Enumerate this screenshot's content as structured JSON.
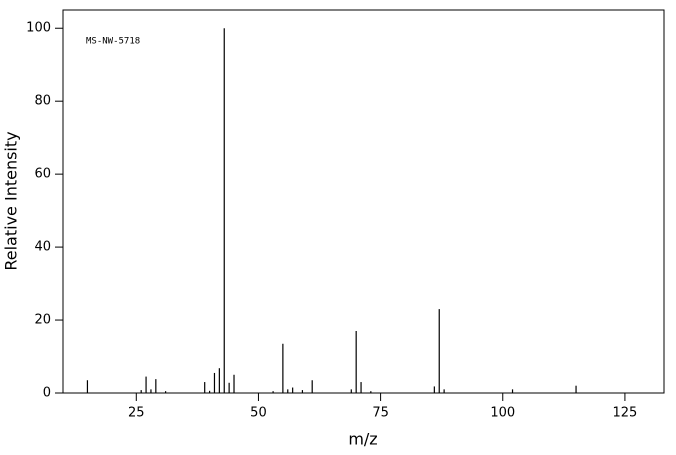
{
  "chart_data": {
    "type": "stem",
    "annotation": "MS-NW-5718",
    "x_label": "m/z",
    "y_label": "Relative Intensity",
    "x": [
      15,
      26,
      27,
      28,
      29,
      31,
      39,
      40,
      41,
      42,
      43,
      44,
      45,
      53,
      55,
      56,
      57,
      59,
      61,
      69,
      70,
      71,
      73,
      86,
      87,
      88,
      102,
      115
    ],
    "values": [
      3.5,
      0.8,
      4.5,
      1.0,
      3.8,
      0.5,
      3.0,
      0.6,
      5.5,
      6.8,
      100,
      2.8,
      5.0,
      0.5,
      13.5,
      1.0,
      1.5,
      0.8,
      3.5,
      1.0,
      17.0,
      3.0,
      0.5,
      1.8,
      23.0,
      1.0,
      1.0,
      2.0
    ],
    "color": "#000000",
    "xlim": [
      10,
      133
    ],
    "xticks": [
      25,
      50,
      75,
      100,
      125
    ],
    "ylim": [
      0,
      105
    ],
    "yticks": [
      0,
      20,
      40,
      60,
      80,
      100
    ]
  }
}
